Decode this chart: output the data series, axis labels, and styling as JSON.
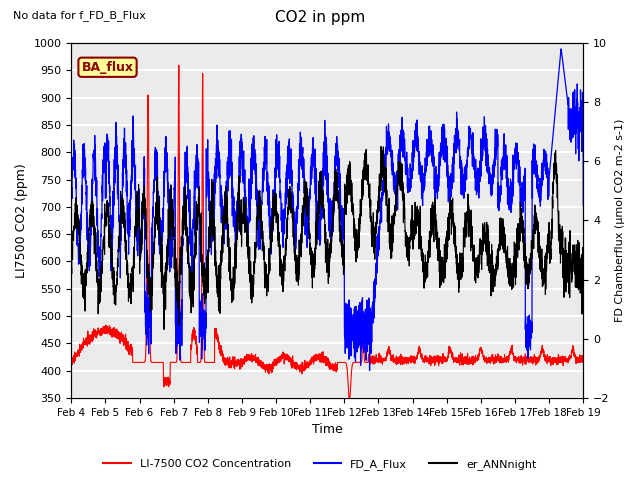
{
  "title": "CO2 in ppm",
  "title_note": "No data for f_FD_B_Flux",
  "ylabel_left": "LI7500 CO2 (ppm)",
  "ylabel_right": "FD Chamberflux (μmol CO2 m-2 s-1)",
  "xlabel": "Time",
  "ylim_left": [
    350,
    1000
  ],
  "ylim_right": [
    -2,
    10
  ],
  "yticks_left": [
    350,
    400,
    450,
    500,
    550,
    600,
    650,
    700,
    750,
    800,
    850,
    900,
    950,
    1000
  ],
  "yticks_right": [
    -2,
    0,
    2,
    4,
    6,
    8,
    10
  ],
  "xticklabels": [
    "Feb 4",
    "Feb 5",
    "Feb 6",
    "Feb 7",
    "Feb 8",
    "Feb 9",
    "Feb 10",
    "Feb 11",
    "Feb 12",
    "Feb 13",
    "Feb 14",
    "Feb 15",
    "Feb 16",
    "Feb 17",
    "Feb 18",
    "Feb 19"
  ],
  "legend_entries": [
    "LI-7500 CO2 Concentration",
    "FD_A_Flux",
    "er_ANNnight"
  ],
  "legend_colors": [
    "red",
    "blue",
    "black"
  ],
  "ba_flux_label": "BA_flux",
  "ba_flux_color_bg": "#FFFF99",
  "ba_flux_color_border": "#8B0000",
  "ba_flux_text_color": "#8B0000",
  "plot_bg_color": "#EBEBEB",
  "grid_color": "white",
  "n_points": 3600
}
